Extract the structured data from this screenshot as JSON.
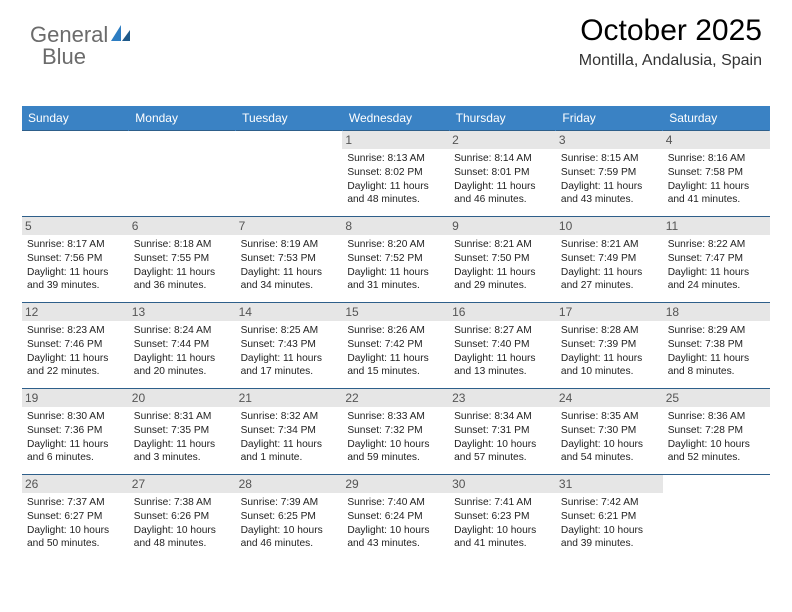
{
  "logo": {
    "word1": "General",
    "word2": "Blue"
  },
  "title": "October 2025",
  "location": "Montilla, Andalusia, Spain",
  "colors": {
    "header_bg": "#3a82c4",
    "header_text": "#ffffff",
    "row_border": "#2e5f8a",
    "logo_gray": "#6b6b6b",
    "logo_blue": "#2d7dc2",
    "daynum_bg": "#e6e6e6"
  },
  "day_headers": [
    "Sunday",
    "Monday",
    "Tuesday",
    "Wednesday",
    "Thursday",
    "Friday",
    "Saturday"
  ],
  "weeks": [
    [
      {
        "empty": true
      },
      {
        "empty": true
      },
      {
        "empty": true
      },
      {
        "day": "1",
        "sunrise": "Sunrise: 8:13 AM",
        "sunset": "Sunset: 8:02 PM",
        "daylight": "Daylight: 11 hours and 48 minutes."
      },
      {
        "day": "2",
        "sunrise": "Sunrise: 8:14 AM",
        "sunset": "Sunset: 8:01 PM",
        "daylight": "Daylight: 11 hours and 46 minutes."
      },
      {
        "day": "3",
        "sunrise": "Sunrise: 8:15 AM",
        "sunset": "Sunset: 7:59 PM",
        "daylight": "Daylight: 11 hours and 43 minutes."
      },
      {
        "day": "4",
        "sunrise": "Sunrise: 8:16 AM",
        "sunset": "Sunset: 7:58 PM",
        "daylight": "Daylight: 11 hours and 41 minutes."
      }
    ],
    [
      {
        "day": "5",
        "sunrise": "Sunrise: 8:17 AM",
        "sunset": "Sunset: 7:56 PM",
        "daylight": "Daylight: 11 hours and 39 minutes."
      },
      {
        "day": "6",
        "sunrise": "Sunrise: 8:18 AM",
        "sunset": "Sunset: 7:55 PM",
        "daylight": "Daylight: 11 hours and 36 minutes."
      },
      {
        "day": "7",
        "sunrise": "Sunrise: 8:19 AM",
        "sunset": "Sunset: 7:53 PM",
        "daylight": "Daylight: 11 hours and 34 minutes."
      },
      {
        "day": "8",
        "sunrise": "Sunrise: 8:20 AM",
        "sunset": "Sunset: 7:52 PM",
        "daylight": "Daylight: 11 hours and 31 minutes."
      },
      {
        "day": "9",
        "sunrise": "Sunrise: 8:21 AM",
        "sunset": "Sunset: 7:50 PM",
        "daylight": "Daylight: 11 hours and 29 minutes."
      },
      {
        "day": "10",
        "sunrise": "Sunrise: 8:21 AM",
        "sunset": "Sunset: 7:49 PM",
        "daylight": "Daylight: 11 hours and 27 minutes."
      },
      {
        "day": "11",
        "sunrise": "Sunrise: 8:22 AM",
        "sunset": "Sunset: 7:47 PM",
        "daylight": "Daylight: 11 hours and 24 minutes."
      }
    ],
    [
      {
        "day": "12",
        "sunrise": "Sunrise: 8:23 AM",
        "sunset": "Sunset: 7:46 PM",
        "daylight": "Daylight: 11 hours and 22 minutes."
      },
      {
        "day": "13",
        "sunrise": "Sunrise: 8:24 AM",
        "sunset": "Sunset: 7:44 PM",
        "daylight": "Daylight: 11 hours and 20 minutes."
      },
      {
        "day": "14",
        "sunrise": "Sunrise: 8:25 AM",
        "sunset": "Sunset: 7:43 PM",
        "daylight": "Daylight: 11 hours and 17 minutes."
      },
      {
        "day": "15",
        "sunrise": "Sunrise: 8:26 AM",
        "sunset": "Sunset: 7:42 PM",
        "daylight": "Daylight: 11 hours and 15 minutes."
      },
      {
        "day": "16",
        "sunrise": "Sunrise: 8:27 AM",
        "sunset": "Sunset: 7:40 PM",
        "daylight": "Daylight: 11 hours and 13 minutes."
      },
      {
        "day": "17",
        "sunrise": "Sunrise: 8:28 AM",
        "sunset": "Sunset: 7:39 PM",
        "daylight": "Daylight: 11 hours and 10 minutes."
      },
      {
        "day": "18",
        "sunrise": "Sunrise: 8:29 AM",
        "sunset": "Sunset: 7:38 PM",
        "daylight": "Daylight: 11 hours and 8 minutes."
      }
    ],
    [
      {
        "day": "19",
        "sunrise": "Sunrise: 8:30 AM",
        "sunset": "Sunset: 7:36 PM",
        "daylight": "Daylight: 11 hours and 6 minutes."
      },
      {
        "day": "20",
        "sunrise": "Sunrise: 8:31 AM",
        "sunset": "Sunset: 7:35 PM",
        "daylight": "Daylight: 11 hours and 3 minutes."
      },
      {
        "day": "21",
        "sunrise": "Sunrise: 8:32 AM",
        "sunset": "Sunset: 7:34 PM",
        "daylight": "Daylight: 11 hours and 1 minute."
      },
      {
        "day": "22",
        "sunrise": "Sunrise: 8:33 AM",
        "sunset": "Sunset: 7:32 PM",
        "daylight": "Daylight: 10 hours and 59 minutes."
      },
      {
        "day": "23",
        "sunrise": "Sunrise: 8:34 AM",
        "sunset": "Sunset: 7:31 PM",
        "daylight": "Daylight: 10 hours and 57 minutes."
      },
      {
        "day": "24",
        "sunrise": "Sunrise: 8:35 AM",
        "sunset": "Sunset: 7:30 PM",
        "daylight": "Daylight: 10 hours and 54 minutes."
      },
      {
        "day": "25",
        "sunrise": "Sunrise: 8:36 AM",
        "sunset": "Sunset: 7:28 PM",
        "daylight": "Daylight: 10 hours and 52 minutes."
      }
    ],
    [
      {
        "day": "26",
        "sunrise": "Sunrise: 7:37 AM",
        "sunset": "Sunset: 6:27 PM",
        "daylight": "Daylight: 10 hours and 50 minutes."
      },
      {
        "day": "27",
        "sunrise": "Sunrise: 7:38 AM",
        "sunset": "Sunset: 6:26 PM",
        "daylight": "Daylight: 10 hours and 48 minutes."
      },
      {
        "day": "28",
        "sunrise": "Sunrise: 7:39 AM",
        "sunset": "Sunset: 6:25 PM",
        "daylight": "Daylight: 10 hours and 46 minutes."
      },
      {
        "day": "29",
        "sunrise": "Sunrise: 7:40 AM",
        "sunset": "Sunset: 6:24 PM",
        "daylight": "Daylight: 10 hours and 43 minutes."
      },
      {
        "day": "30",
        "sunrise": "Sunrise: 7:41 AM",
        "sunset": "Sunset: 6:23 PM",
        "daylight": "Daylight: 10 hours and 41 minutes."
      },
      {
        "day": "31",
        "sunrise": "Sunrise: 7:42 AM",
        "sunset": "Sunset: 6:21 PM",
        "daylight": "Daylight: 10 hours and 39 minutes."
      },
      {
        "empty": true
      }
    ]
  ]
}
